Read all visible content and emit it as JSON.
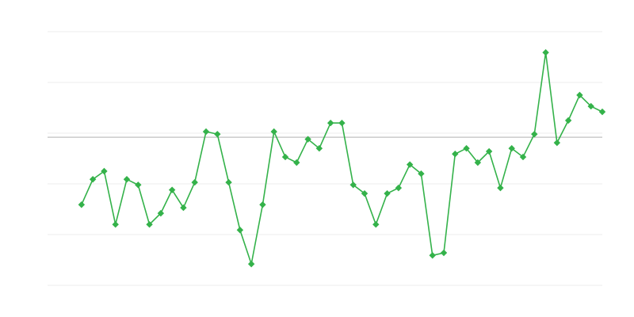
{
  "chart_data": {
    "type": "line",
    "title": "",
    "xlabel": "",
    "ylabel": "",
    "xlim": [
      0,
      49
    ],
    "ylim": [
      0,
      5
    ],
    "grid": true,
    "gridlines_y": [
      0,
      1,
      2,
      3,
      4,
      5
    ],
    "reference_line_y": 2.92,
    "x": [
      3,
      4,
      5,
      6,
      7,
      8,
      9,
      10,
      11,
      12,
      13,
      14,
      15,
      16,
      17,
      18,
      19,
      20,
      21,
      22,
      23,
      24,
      25,
      26,
      27,
      28,
      29,
      30,
      31,
      32,
      33,
      34,
      35,
      36,
      37,
      38,
      39,
      40,
      41,
      42,
      43,
      44,
      45,
      46,
      47,
      48,
      49
    ],
    "series": [
      {
        "values": [
          1.59,
          2.09,
          2.25,
          1.2,
          2.09,
          1.98,
          1.2,
          1.42,
          1.88,
          1.53,
          2.03,
          3.03,
          2.98,
          2.03,
          1.09,
          0.42,
          1.59,
          3.03,
          2.53,
          2.42,
          2.88,
          2.7,
          3.2,
          3.2,
          1.98,
          1.81,
          1.2,
          1.81,
          1.92,
          2.38,
          2.2,
          0.59,
          0.64,
          2.59,
          2.7,
          2.42,
          2.64,
          1.92,
          2.7,
          2.53,
          2.98,
          4.59,
          2.81,
          3.25,
          3.75,
          3.53,
          3.42
        ],
        "color": "#34b24a",
        "marker": "diamond"
      }
    ],
    "colors": {
      "grid": "#ececec",
      "reference_line": "#b0b0b0"
    }
  }
}
